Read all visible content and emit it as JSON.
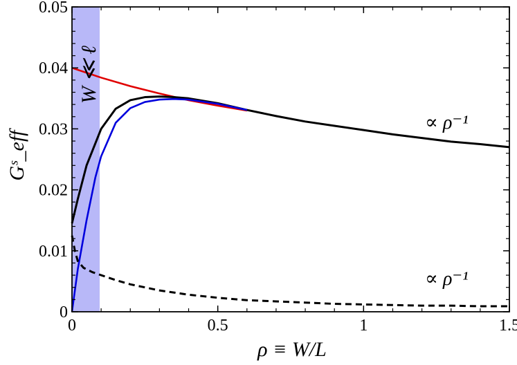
{
  "chart_data": {
    "type": "line",
    "xlabel": "ρ ≡ W/L",
    "ylabel": "Gˢ_eff",
    "xlim": [
      0,
      1.5
    ],
    "ylim": [
      0,
      0.05
    ],
    "grid": false,
    "x_tick_labels": [
      "0",
      "0.5",
      "1",
      "1.5"
    ],
    "x_ticks": [
      0,
      0.5,
      1,
      1.5
    ],
    "y_tick_labels": [
      "0",
      "0.01",
      "0.02",
      "0.03",
      "0.04",
      "0.05"
    ],
    "y_ticks": [
      0,
      0.01,
      0.02,
      0.03,
      0.04,
      0.05
    ],
    "shaded_band": {
      "x": [
        0,
        0.095
      ],
      "color": "#b8b8f8",
      "label": "W ≪ ℓ"
    },
    "annotations": [
      "∝ ρ⁻¹",
      "∝ ρ⁻¹"
    ],
    "series": [
      {
        "color": "#e00000",
        "x": [
          0,
          0.1,
          0.2,
          0.3,
          0.4,
          0.5,
          0.6
        ],
        "y": [
          0.04,
          0.0384,
          0.037,
          0.0358,
          0.0347,
          0.0338,
          0.033
        ]
      },
      {
        "color": "#000000",
        "x": [
          0,
          0.02,
          0.05,
          0.1,
          0.15,
          0.2,
          0.25,
          0.3,
          0.35,
          0.4,
          0.5,
          0.6,
          0.7,
          0.8,
          0.9,
          1.0,
          1.1,
          1.2,
          1.3,
          1.4,
          1.5
        ],
        "y": [
          0.0145,
          0.0185,
          0.024,
          0.03,
          0.0333,
          0.0347,
          0.0352,
          0.0353,
          0.0352,
          0.035,
          0.0342,
          0.0331,
          0.0321,
          0.0312,
          0.0305,
          0.0298,
          0.0291,
          0.0285,
          0.0279,
          0.0275,
          0.027
        ]
      },
      {
        "color": "#0000dd",
        "x": [
          0,
          0.02,
          0.05,
          0.08,
          0.1,
          0.15,
          0.2,
          0.25,
          0.3,
          0.35,
          0.4,
          0.5,
          0.6
        ],
        "y": [
          0.0,
          0.007,
          0.015,
          0.022,
          0.0255,
          0.031,
          0.0334,
          0.0344,
          0.0348,
          0.0349,
          0.0348,
          0.0341,
          0.0331
        ]
      },
      {
        "color": "#000000",
        "dashed": true,
        "x": [
          0,
          0.01,
          0.02,
          0.04,
          0.07,
          0.1,
          0.15,
          0.2,
          0.3,
          0.4,
          0.5,
          0.6,
          0.7,
          0.8,
          0.9,
          1.0,
          1.1,
          1.2,
          1.3,
          1.4,
          1.5
        ],
        "y": [
          0.0125,
          0.01,
          0.0083,
          0.0072,
          0.0065,
          0.006,
          0.0052,
          0.0045,
          0.0035,
          0.0028,
          0.0023,
          0.0019,
          0.0017,
          0.0015,
          0.0013,
          0.0012,
          0.0011,
          0.001,
          0.001,
          0.0009,
          0.0009
        ]
      }
    ]
  }
}
